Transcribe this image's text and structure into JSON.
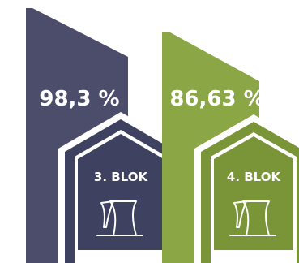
{
  "blocks": [
    {
      "percentage": "98,3 %",
      "label": "3. BLOK",
      "bar_color": "#4b4d6a",
      "house_color": "#3e4160",
      "icon": "cooling-tower-icon"
    },
    {
      "percentage": "86,63 %",
      "label": "4. BLOK",
      "bar_color": "#8ba645",
      "house_color": "#7a9538",
      "icon": "cooling-tower-icon"
    }
  ]
}
